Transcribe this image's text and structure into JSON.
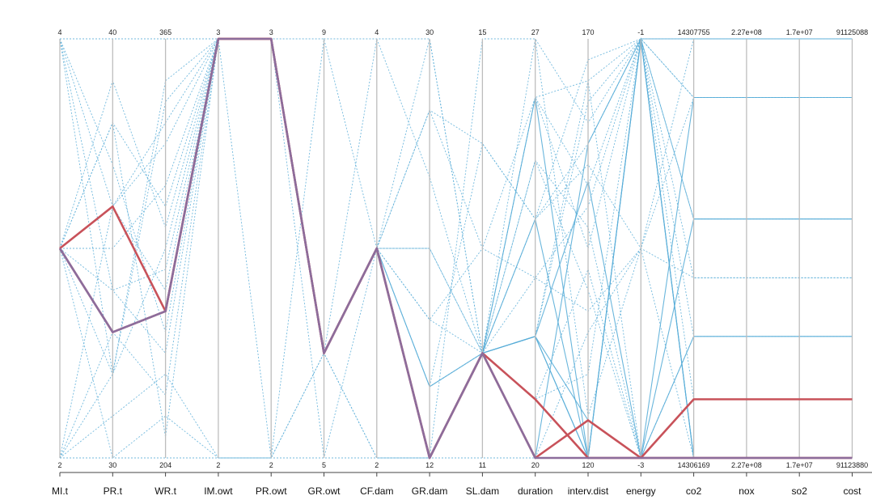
{
  "chart_data": {
    "type": "parallel_coordinates",
    "axes": [
      {
        "key": "MI.t",
        "label": "MI.t",
        "max_label": "4",
        "min_label": "2",
        "min": 2,
        "max": 4
      },
      {
        "key": "PR.t",
        "label": "PR.t",
        "max_label": "40",
        "min_label": "30",
        "min": 30,
        "max": 40
      },
      {
        "key": "WR.t",
        "label": "WR.t",
        "max_label": "365",
        "min_label": "204",
        "min": 204,
        "max": 365
      },
      {
        "key": "IM.owt",
        "label": "IM.owt",
        "max_label": "3",
        "min_label": "2",
        "min": 2,
        "max": 3
      },
      {
        "key": "PR.owt",
        "label": "PR.owt",
        "max_label": "3",
        "min_label": "2",
        "min": 2,
        "max": 3
      },
      {
        "key": "GR.owt",
        "label": "GR.owt",
        "max_label": "9",
        "min_label": "5",
        "min": 5,
        "max": 9
      },
      {
        "key": "CF.dam",
        "label": "CF.dam",
        "max_label": "4",
        "min_label": "2",
        "min": 2,
        "max": 4
      },
      {
        "key": "GR.dam",
        "label": "GR.dam",
        "max_label": "30",
        "min_label": "12",
        "min": 12,
        "max": 30
      },
      {
        "key": "SL.dam",
        "label": "SL.dam",
        "max_label": "15",
        "min_label": "11",
        "min": 11,
        "max": 15
      },
      {
        "key": "duration",
        "label": "duration",
        "max_label": "27",
        "min_label": "20",
        "min": 20,
        "max": 27
      },
      {
        "key": "interv.dist",
        "label": "interv.dist",
        "max_label": "170",
        "min_label": "120",
        "min": 120,
        "max": 170
      },
      {
        "key": "energy",
        "label": "energy",
        "max_label": "-1",
        "min_label": "-3",
        "min": -3,
        "max": -1
      },
      {
        "key": "co2",
        "label": "co2",
        "max_label": "14307755",
        "min_label": "14306169",
        "min": 14306169,
        "max": 14307755
      },
      {
        "key": "nox",
        "label": "nox",
        "max_label": "2.27e+08",
        "min_label": "2.27e+08",
        "min": 0,
        "max": 1
      },
      {
        "key": "so2",
        "label": "so2",
        "max_label": "1.7e+07",
        "min_label": "1.7e+07",
        "min": 0,
        "max": 1
      },
      {
        "key": "cost",
        "label": "cost",
        "max_label": "91125088",
        "min_label": "91123880",
        "min": 91123880,
        "max": 91125088
      }
    ],
    "highlighted": [
      {
        "name": "",
        "color": "#c8525a",
        "values": [
          0.5,
          0.3,
          0.35,
          1.0,
          1.0,
          0.25,
          0.5,
          0.0,
          0.25,
          0.14,
          0.0,
          0.0,
          0.14,
          0.14,
          0.14,
          0.14
        ]
      },
      {
        "name": "",
        "color": "#c8525a",
        "values": [
          0.5,
          0.6,
          0.35,
          1.0,
          1.0,
          0.25,
          0.5,
          0.0,
          0.25,
          0.0,
          0.09,
          0.0,
          0.0,
          0.0,
          0.0,
          0.0
        ]
      },
      {
        "name": "",
        "color": "#8c6d9c",
        "values": [
          0.5,
          0.3,
          0.35,
          1.0,
          1.0,
          0.25,
          0.5,
          0.0,
          0.25,
          0.0,
          0.0,
          0.0,
          0.0,
          0.0,
          0.0,
          0.0
        ]
      }
    ],
    "background_lines": {
      "color": "#5aaed8",
      "solid": [
        [
          0.5,
          0.3,
          0.35,
          1.0,
          1.0,
          0.25,
          0.5,
          0.0,
          0.25,
          0.29,
          0.09,
          0.0,
          0.57,
          0.57,
          0.57,
          0.57
        ],
        [
          0.5,
          0.3,
          0.35,
          1.0,
          1.0,
          0.25,
          0.5,
          0.0,
          0.25,
          0.57,
          0.0,
          0.0,
          0.86,
          0.86,
          0.86,
          0.86
        ],
        [
          0.5,
          0.3,
          0.35,
          1.0,
          1.0,
          0.25,
          0.5,
          0.0,
          0.25,
          0.29,
          0.0,
          0.0,
          0.29,
          0.29,
          0.29,
          0.29
        ],
        [
          0.5,
          0.3,
          0.35,
          1.0,
          1.0,
          0.25,
          0.5,
          0.0,
          0.25,
          0.29,
          0.0,
          1.0,
          1.0,
          1.0,
          1.0,
          1.0
        ],
        [
          0.5,
          0.3,
          0.35,
          1.0,
          1.0,
          0.25,
          0.5,
          0.17,
          0.25,
          0.29,
          0.66,
          0.0,
          0.0,
          0.0,
          0.0,
          0.0
        ],
        [
          0.5,
          0.3,
          0.35,
          1.0,
          1.0,
          0.25,
          0.5,
          0.0,
          0.25,
          0.86,
          0.0,
          1.0,
          0.0,
          0.0,
          0.0,
          0.0
        ],
        [
          0.5,
          0.3,
          0.35,
          1.0,
          1.0,
          0.25,
          0.5,
          0.0,
          0.25,
          0.0,
          0.75,
          1.0,
          0.0,
          0.0,
          0.0,
          0.0
        ],
        [
          0.5,
          0.3,
          0.35,
          1.0,
          1.0,
          0.25,
          0.5,
          0.0,
          0.25,
          0.14,
          0.0,
          1.0,
          0.0,
          0.0,
          0.0,
          0.0
        ]
      ],
      "dotted": [
        [
          0.0,
          0.0,
          0.0,
          0.0,
          0.0,
          0.0,
          0.0,
          0.0,
          0.0,
          0.0,
          0.0,
          0.0,
          0.0,
          0.0,
          0.0,
          0.0
        ],
        [
          1.0,
          1.0,
          1.0,
          1.0,
          0.0,
          1.0,
          1.0,
          1.0,
          0.25,
          0.86,
          0.9,
          1.0,
          0.86,
          0.86,
          0.86,
          0.86
        ],
        [
          0.5,
          0.6,
          0.75,
          1.0,
          1.0,
          0.25,
          0.0,
          0.0,
          1.0,
          1.0,
          0.8,
          1.0,
          0.57,
          0.57,
          0.57,
          0.57
        ],
        [
          0.0,
          0.2,
          0.5,
          1.0,
          1.0,
          0.25,
          0.5,
          0.83,
          0.75,
          0.57,
          0.7,
          0.5,
          0.43,
          0.43,
          0.43,
          0.43
        ],
        [
          1.0,
          0.4,
          0.25,
          1.0,
          1.0,
          0.25,
          0.5,
          0.5,
          0.25,
          0.86,
          0.5,
          1.0,
          0.29,
          0.29,
          0.29,
          0.29
        ],
        [
          0.5,
          0.8,
          0.6,
          1.0,
          1.0,
          1.0,
          0.5,
          0.17,
          0.25,
          0.0,
          0.3,
          0.5,
          1.0,
          1.0,
          1.0,
          1.0
        ],
        [
          0.0,
          0.6,
          0.8,
          1.0,
          1.0,
          0.25,
          1.0,
          0.67,
          0.25,
          0.29,
          0.9,
          0.0,
          0.14,
          0.14,
          0.14,
          0.14
        ],
        [
          0.5,
          0.0,
          0.1,
          0.0,
          0.0,
          0.25,
          0.5,
          0.33,
          0.5,
          0.43,
          0.6,
          1.0,
          0.86,
          0.86,
          0.86,
          0.86
        ],
        [
          1.0,
          0.2,
          0.9,
          1.0,
          1.0,
          0.25,
          0.5,
          1.0,
          0.25,
          0.71,
          0.4,
          0.0,
          0.0,
          0.0,
          0.0,
          0.0
        ],
        [
          0.5,
          0.4,
          0.45,
          1.0,
          1.0,
          0.0,
          0.5,
          0.0,
          0.25,
          0.14,
          0.2,
          1.0,
          0.57,
          0.57,
          0.57,
          0.57
        ],
        [
          0.0,
          0.1,
          0.2,
          0.0,
          0.0,
          0.25,
          0.5,
          0.17,
          0.75,
          0.57,
          0.95,
          1.0,
          1.0,
          1.0,
          1.0,
          1.0
        ],
        [
          0.5,
          0.9,
          0.55,
          1.0,
          1.0,
          0.25,
          0.5,
          0.0,
          0.25,
          1.0,
          0.1,
          0.5,
          0.0,
          0.0,
          0.0,
          0.0
        ],
        [
          1.0,
          0.7,
          0.3,
          1.0,
          1.0,
          0.25,
          0.0,
          0.0,
          0.25,
          0.29,
          0.85,
          1.0,
          0.43,
          0.43,
          0.43,
          0.43
        ],
        [
          0.5,
          0.5,
          0.65,
          1.0,
          1.0,
          0.25,
          0.5,
          0.5,
          0.25,
          0.71,
          0.55,
          0.0,
          0.29,
          0.29,
          0.29,
          0.29
        ],
        [
          0.0,
          0.3,
          0.15,
          1.0,
          1.0,
          0.25,
          0.5,
          0.83,
          0.5,
          0.86,
          0.65,
          1.0,
          0.14,
          0.14,
          0.14,
          0.14
        ],
        [
          0.5,
          0.2,
          0.85,
          1.0,
          1.0,
          0.25,
          0.5,
          0.0,
          0.25,
          0.43,
          0.35,
          0.5,
          0.86,
          0.86,
          0.86,
          0.86
        ],
        [
          1.0,
          0.6,
          0.4,
          1.0,
          1.0,
          0.25,
          0.5,
          0.33,
          0.25,
          0.57,
          0.75,
          1.0,
          0.57,
          0.57,
          0.57,
          0.57
        ],
        [
          0.5,
          0.8,
          0.05,
          1.0,
          1.0,
          0.25,
          0.5,
          0.0,
          0.25,
          0.14,
          0.45,
          0.0,
          0.0,
          0.0,
          0.0,
          0.0
        ]
      ]
    },
    "grid": false,
    "legend": "none"
  }
}
